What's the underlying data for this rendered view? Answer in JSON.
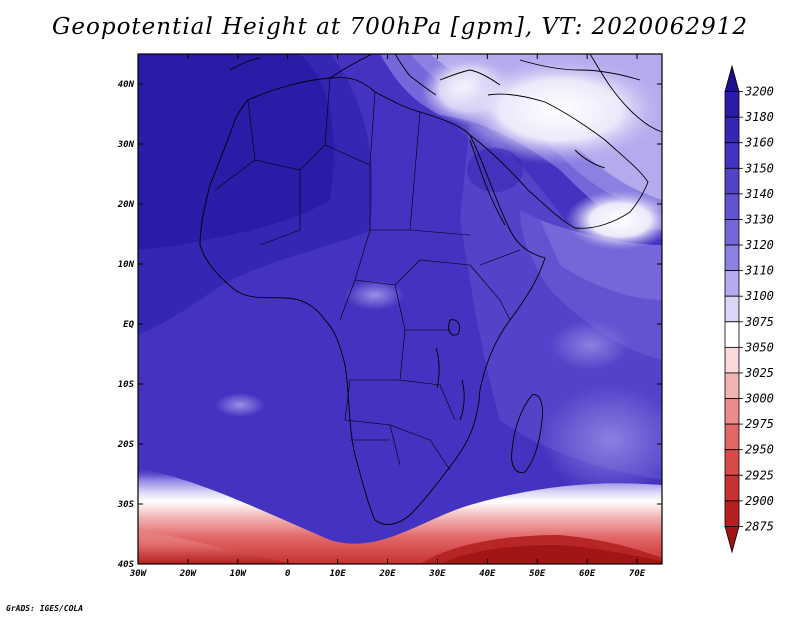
{
  "title": "Geopotential Height at 700hPa [gpm], VT: 2020062912",
  "credit": "GrADS: IGES/COLA",
  "map": {
    "lon_labels": [
      "30W",
      "20W",
      "10W",
      "0",
      "10E",
      "20E",
      "30E",
      "40E",
      "50E",
      "60E",
      "70E"
    ],
    "lat_labels": [
      "40N",
      "30N",
      "20N",
      "10N",
      "EQ",
      "10S",
      "20S",
      "30S",
      "40S"
    ],
    "lon_range": [
      -30,
      75
    ],
    "lat_range": [
      -40,
      45
    ]
  },
  "colorbar": {
    "levels": [
      "3200",
      "3180",
      "3160",
      "3150",
      "3140",
      "3130",
      "3120",
      "3110",
      "3100",
      "3075",
      "3050",
      "3025",
      "3000",
      "2975",
      "2950",
      "2925",
      "2900",
      "2875"
    ],
    "colors": [
      "#1e0f8c",
      "#2a1ca6",
      "#3626b4",
      "#4333c0",
      "#5243c8",
      "#6253d0",
      "#7566d9",
      "#8c80e2",
      "#b4aaee",
      "#dcd6f6",
      "#ffffff",
      "#f9d9d9",
      "#f2b3b3",
      "#ea8c8c",
      "#e26868",
      "#d94a4a",
      "#c83232",
      "#b42020",
      "#a01414"
    ]
  }
}
